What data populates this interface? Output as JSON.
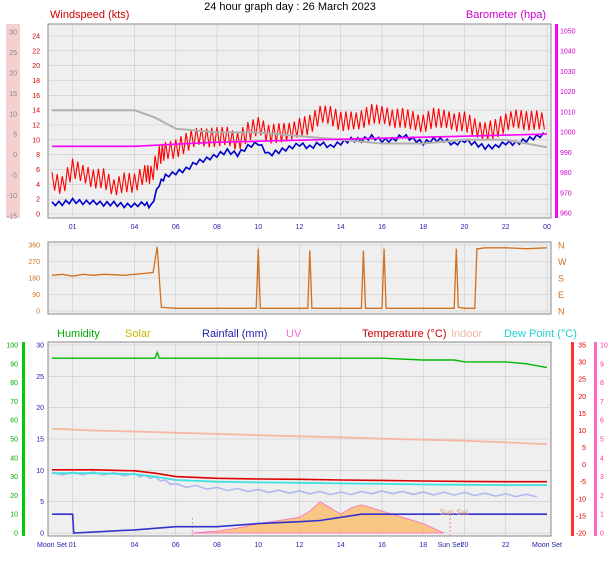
{
  "title": "24 hour graph day : 26 March 2023",
  "colors": {
    "wind_avg": "#0000cc",
    "wind_gust": "#ff0000",
    "wind_avg_grey": "#b0b0b0",
    "barometer": "#ff00ff",
    "direction": "#d07020",
    "humidity": "#00bb00",
    "temperature": "#dd0000",
    "indoor": "#f5b8a0",
    "dew_point": "#40e0e0",
    "rainfall": "#3333cc",
    "solar": "#f0a040",
    "uv": "#ff66cc",
    "grid": "#c8c8c8",
    "plot_bg": "#efefef"
  },
  "chart_data": [
    {
      "type": "line",
      "panel": "wind_pressure",
      "legend": {
        "left": "Windspeed (kts)",
        "right": "Barometer (hpa)"
      },
      "x_ticks": [
        "01",
        "04",
        "06",
        "08",
        "10",
        "12",
        "14",
        "16",
        "18",
        "20",
        "22",
        "00"
      ],
      "y_left_ticks_outer": [
        "-15",
        "-10",
        "-5",
        "0",
        "5",
        "10",
        "15",
        "20",
        "25",
        "30"
      ],
      "y_left_ticks_inner": [
        "0",
        "2",
        "4",
        "6",
        "8",
        "10",
        "12",
        "14",
        "16",
        "18",
        "20",
        "22",
        "24"
      ],
      "y_right_ticks": [
        "960",
        "970",
        "980",
        "990",
        "1000",
        "1010",
        "1020",
        "1030",
        "1040",
        "1050"
      ],
      "ylim_kts": [
        0,
        25
      ],
      "ylim_hpa": [
        955,
        1050
      ],
      "series": [
        {
          "key": "wind_avg",
          "x": [
            0,
            0.5,
            1,
            1.5,
            2,
            2.5,
            3,
            3.5,
            4,
            4.5,
            4.8,
            5.2,
            5.5,
            6,
            6.5,
            7,
            7.5,
            8,
            8.5,
            9,
            9.5,
            10,
            10.5,
            11,
            11.5,
            12,
            12.5,
            13,
            13.5,
            14,
            14.5,
            15,
            15.5,
            16,
            16.5,
            17,
            17.5,
            18,
            18.5,
            19,
            19.5,
            20,
            20.5,
            21,
            21.5,
            22,
            22.5,
            23,
            23.5,
            24
          ],
          "values": [
            1.5,
            1.5,
            1.8,
            1.5,
            1.5,
            1.3,
            1.4,
            1.2,
            1.3,
            1.5,
            1.0,
            4,
            5,
            5.5,
            6,
            7,
            7.5,
            8,
            8.5,
            8,
            9,
            9.5,
            8,
            8.5,
            9,
            9.5,
            9,
            9.5,
            9,
            9.5,
            10,
            10,
            10.5,
            10,
            10,
            10.5,
            10,
            9.5,
            10,
            10,
            9.5,
            10,
            9.5,
            9,
            9,
            9.5,
            9.5,
            10,
            10.5,
            11
          ]
        },
        {
          "key": "wind_gust",
          "x": [
            0,
            0.5,
            1,
            1.5,
            2,
            2.5,
            3,
            3.5,
            4,
            4.5,
            4.8,
            5.2,
            5.5,
            6,
            6.5,
            7,
            7.5,
            8,
            8.5,
            9,
            9.5,
            10,
            10.5,
            11,
            11.5,
            12,
            12.5,
            13,
            13.5,
            14,
            14.5,
            15,
            15.5,
            16,
            16.5,
            17,
            17.5,
            18,
            18.5,
            19,
            19.5,
            20,
            20.5,
            21,
            21.5,
            22,
            22.5,
            23,
            23.5,
            24
          ],
          "values": [
            5,
            4,
            6,
            5,
            4.5,
            5,
            4,
            4.5,
            4,
            5,
            5,
            8,
            9,
            9,
            9.5,
            10,
            10,
            10.5,
            11,
            10,
            11,
            11.5,
            10.5,
            11,
            11.5,
            12,
            12,
            13,
            13,
            12.5,
            13,
            13,
            13.5,
            13,
            12.5,
            13,
            13,
            12.5,
            13,
            12.5,
            12,
            12.5,
            12,
            11.5,
            11.5,
            12,
            12.5,
            12.5,
            13,
            13
          ]
        },
        {
          "key": "wind_avg_grey",
          "x": [
            0,
            2,
            4,
            5,
            6,
            8,
            10,
            12,
            14,
            16,
            18,
            20,
            22,
            24
          ],
          "values": [
            14,
            14,
            14,
            13,
            11.5,
            11,
            11,
            10.5,
            10,
            9.5,
            9.5,
            10,
            10,
            9
          ]
        },
        {
          "key": "barometer",
          "unit": "hpa",
          "x": [
            0,
            2,
            4,
            6,
            8,
            10,
            12,
            14,
            16,
            18,
            20,
            22,
            24
          ],
          "values": [
            993,
            993,
            993,
            994,
            995,
            995.5,
            996,
            996.5,
            997,
            997.5,
            998,
            998.5,
            999
          ]
        }
      ]
    },
    {
      "type": "line",
      "panel": "wind_direction",
      "y_left_ticks": [
        "0",
        "90",
        "180",
        "270",
        "360"
      ],
      "y_right_ticks": [
        "N",
        "E",
        "S",
        "W",
        "N"
      ],
      "ylim": [
        0,
        360
      ],
      "series": [
        {
          "key": "direction",
          "x": [
            0,
            0.5,
            1,
            1.5,
            2,
            2.5,
            3,
            3.5,
            4,
            4.5,
            4.9,
            5.1,
            5.3,
            6,
            8,
            9.9,
            10,
            10.1,
            12,
            12.4,
            12.5,
            12.6,
            14,
            15,
            15.1,
            15.2,
            16,
            16.1,
            16.2,
            18,
            19.5,
            19.6,
            19.7,
            20,
            20.5,
            20.6,
            20.7,
            21,
            22,
            23,
            24
          ],
          "values": [
            195,
            200,
            190,
            200,
            195,
            200,
            198,
            195,
            200,
            205,
            210,
            350,
            20,
            15,
            15,
            15,
            340,
            15,
            15,
            15,
            330,
            15,
            15,
            15,
            330,
            15,
            15,
            340,
            15,
            15,
            15,
            340,
            20,
            15,
            15,
            340,
            340,
            345,
            345,
            340,
            345
          ]
        }
      ]
    },
    {
      "type": "line",
      "panel": "temperature_humidity",
      "legend": [
        "Humidity",
        "Solar",
        "Rainfall (mm)",
        "UV",
        "Temperature (°C)",
        "Indoor",
        "Dew Point (°C)"
      ],
      "x_ticks": [
        "Moon Set",
        "01",
        "04",
        "06",
        "08",
        "10",
        "12",
        "14",
        "16",
        "18",
        "Sun Set",
        "20",
        "22",
        "Moon Set"
      ],
      "annotations": [
        "Sun Set"
      ],
      "y_humidity_ticks": [
        "0",
        "10",
        "20",
        "30",
        "40",
        "50",
        "60",
        "70",
        "80",
        "90",
        "100"
      ],
      "y_rain_ticks": [
        "0",
        "5",
        "10",
        "15",
        "20",
        "25",
        "30"
      ],
      "y_temp_ticks": [
        "-20",
        "-15",
        "-10",
        "-5",
        "0",
        "5",
        "10",
        "15",
        "20",
        "25",
        "30",
        "35"
      ],
      "y_uv_ticks": [
        "0",
        "1",
        "2",
        "3",
        "4",
        "5",
        "6",
        "7",
        "8",
        "9",
        "10"
      ],
      "ylim_temp": [
        -20,
        35
      ],
      "series": [
        {
          "key": "humidity",
          "x": [
            0,
            2,
            4,
            5,
            5.1,
            5.2,
            6,
            8,
            10,
            12,
            14,
            16,
            18,
            19.5,
            20,
            22,
            23,
            24
          ],
          "values": [
            93,
            93,
            93,
            93,
            96,
            93,
            93,
            93,
            93,
            93,
            93,
            93,
            92,
            92,
            91,
            91,
            90,
            88
          ]
        },
        {
          "key": "temperature",
          "unit": "°C",
          "x": [
            0,
            2,
            4,
            5,
            6,
            8,
            10,
            12,
            14,
            16,
            18,
            20,
            22,
            24
          ],
          "values": [
            -1.5,
            -1.5,
            -1.8,
            -2.5,
            -3.5,
            -4.0,
            -4.2,
            -4.3,
            -4.5,
            -4.6,
            -4.8,
            -4.9,
            -5.0,
            -5.0
          ]
        },
        {
          "key": "dew_point",
          "unit": "°C",
          "x": [
            0,
            2,
            4,
            5,
            6,
            8,
            10,
            12,
            14,
            16,
            18,
            20,
            22,
            24
          ],
          "values": [
            -2.5,
            -2.5,
            -2.8,
            -3.5,
            -4.5,
            -5.0,
            -5.2,
            -5.3,
            -5.5,
            -5.6,
            -5.8,
            -5.9,
            -6.0,
            -6.0
          ]
        },
        {
          "key": "indoor",
          "unit": "°C",
          "x": [
            0,
            2,
            4,
            6,
            8,
            10,
            12,
            14,
            16,
            18,
            20,
            22,
            24
          ],
          "values": [
            10.5,
            10,
            9.7,
            9.3,
            9,
            8.6,
            8.3,
            8,
            7.6,
            7.3,
            7,
            6.5,
            6
          ]
        },
        {
          "key": "wind_grey_low",
          "x": [
            0,
            2,
            4,
            5,
            6,
            8,
            10,
            12,
            14,
            16,
            18,
            20,
            22,
            24
          ],
          "values": [
            -2.5,
            -2.5,
            -3,
            -4,
            -6,
            -7,
            -7.5,
            -8,
            -8.5,
            -8.2,
            -8.5,
            -8.5,
            -8.8,
            -9
          ]
        },
        {
          "key": "rainfall",
          "unit": "mm",
          "x": [
            0,
            1,
            1.05,
            4,
            6,
            8,
            10,
            12,
            13,
            14,
            15,
            16,
            18,
            20,
            22,
            24
          ],
          "values": [
            3,
            3,
            0,
            0.5,
            1,
            1,
            1.5,
            1.8,
            2,
            2.5,
            3,
            3,
            3,
            3,
            3,
            3
          ]
        },
        {
          "key": "solar",
          "x": [
            6.8,
            8,
            9,
            10,
            11,
            12,
            12.5,
            13,
            13.5,
            14,
            14.5,
            15,
            15.5,
            16,
            17,
            18,
            19
          ],
          "values": [
            0,
            0.3,
            0.8,
            1.5,
            2,
            2.5,
            3.5,
            5,
            4,
            3,
            4,
            4.5,
            4,
            3.5,
            2.5,
            1.5,
            0
          ]
        }
      ]
    }
  ]
}
